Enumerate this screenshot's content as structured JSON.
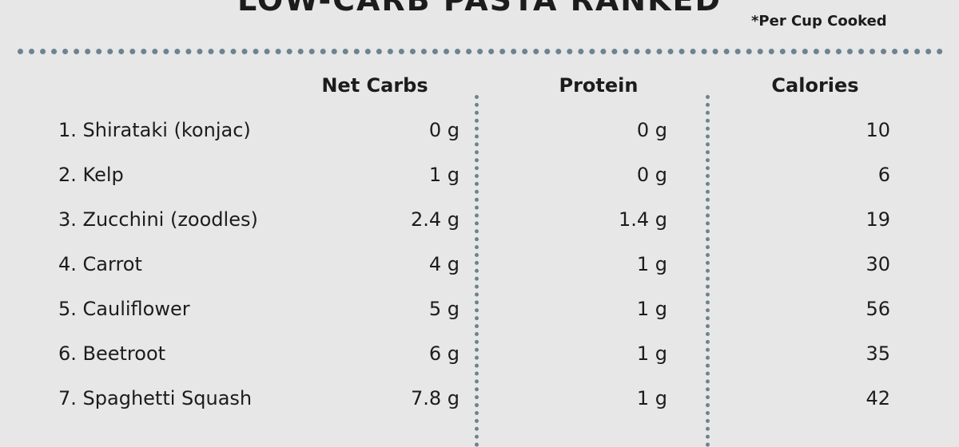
{
  "title": "LOW-CARB PASTA RANKED",
  "note": "*Per Cup Cooked",
  "columns": {
    "carbs": "Net Carbs",
    "protein": "Protein",
    "calories": "Calories"
  },
  "accent_color": "#6d8391",
  "rows": [
    {
      "name": "1. Shirataki (konjac)",
      "carbs": "0 g",
      "protein": "0 g",
      "calories": "10"
    },
    {
      "name": "2. Kelp",
      "carbs": "1 g",
      "protein": "0 g",
      "calories": "6"
    },
    {
      "name": "3. Zucchini (zoodles)",
      "carbs": "2.4 g",
      "protein": "1.4 g",
      "calories": "19"
    },
    {
      "name": "4. Carrot",
      "carbs": "4 g",
      "protein": "1 g",
      "calories": "30"
    },
    {
      "name": "5. Cauliflower",
      "carbs": "5 g",
      "protein": "1 g",
      "calories": "56"
    },
    {
      "name": "6. Beetroot",
      "carbs": "6 g",
      "protein": "1 g",
      "calories": "35"
    },
    {
      "name": "7. Spaghetti Squash",
      "carbs": "7.8 g",
      "protein": "1 g",
      "calories": "42"
    }
  ]
}
